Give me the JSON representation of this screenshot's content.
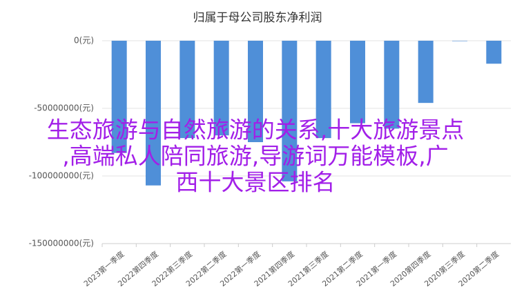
{
  "chart_data": {
    "type": "bar",
    "title": "归属于母公司股东净利润",
    "categories": [
      "2023第一季度",
      "2022第四季度",
      "2022第三季度",
      "2022第二季度",
      "2022第一季度",
      "2021第四季度",
      "2021第三季度",
      "2021第二季度",
      "2021第一季度",
      "2020第四季度",
      "2020第三季度",
      "2020第二季度"
    ],
    "values": [
      -83000000,
      -107000000,
      -72000000,
      -70000000,
      -75000000,
      -104000000,
      -72000000,
      -61000000,
      -65000000,
      -46000000,
      -300000,
      -17000000
    ],
    "color": "#4f8fd8",
    "ylim": [
      -150000000,
      0
    ],
    "yticks": [
      {
        "value": 0,
        "label": "0(元)"
      },
      {
        "value": -50000000,
        "label": "-50000000(元)"
      },
      {
        "value": -100000000,
        "label": "-100000000(元)"
      },
      {
        "value": -150000000,
        "label": "-150000000(元)"
      }
    ],
    "grid": true,
    "annotation": [
      "生态旅游与自然旅游的关系,十大旅游景点",
      ",高端私人陪同旅游,导游词万能模板,广",
      "西十大景区排名"
    ]
  }
}
